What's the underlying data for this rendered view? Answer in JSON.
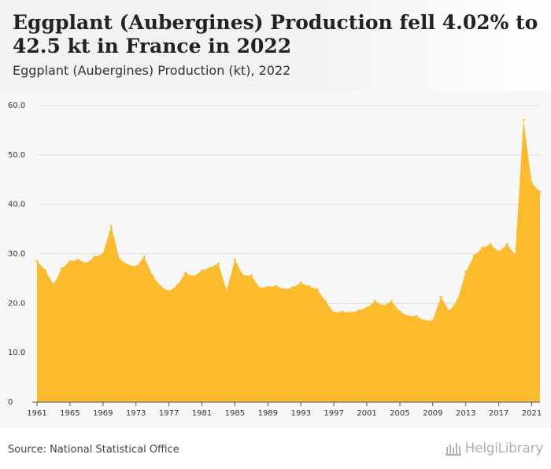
{
  "header": {
    "title": "Eggplant (Aubergines) Production fell 4.02% to 42.5 kt in France in 2022",
    "subtitle": "Eggplant (Aubergines) Production (kt), 2022"
  },
  "footer": {
    "source": "Source: National Statistical Office",
    "brand": "HelgiLibrary"
  },
  "colors": {
    "area": "#fbbb2d",
    "grid": "#dddddd",
    "axis": "#555555"
  },
  "chart_data": {
    "type": "area",
    "title": "Eggplant (Aubergines) Production (kt), 2022",
    "xlabel": "",
    "ylabel": "",
    "x": [
      1961,
      1962,
      1963,
      1964,
      1965,
      1966,
      1967,
      1968,
      1969,
      1970,
      1971,
      1972,
      1973,
      1974,
      1975,
      1976,
      1977,
      1978,
      1979,
      1980,
      1981,
      1982,
      1983,
      1984,
      1985,
      1986,
      1987,
      1988,
      1989,
      1990,
      1991,
      1992,
      1993,
      1994,
      1995,
      1996,
      1997,
      1998,
      1999,
      2000,
      2001,
      2002,
      2003,
      2004,
      2005,
      2006,
      2007,
      2008,
      2009,
      2010,
      2011,
      2012,
      2013,
      2014,
      2015,
      2016,
      2017,
      2018,
      2019,
      2020,
      2021,
      2022
    ],
    "values": [
      28.5,
      26.7,
      23.8,
      27.0,
      28.5,
      28.8,
      28.1,
      29.4,
      30.0,
      35.6,
      28.9,
      27.8,
      27.4,
      29.4,
      25.6,
      23.4,
      22.4,
      23.6,
      26.1,
      25.4,
      26.6,
      27.2,
      28.0,
      22.6,
      28.8,
      25.6,
      25.6,
      23.1,
      23.3,
      23.5,
      22.8,
      23.2,
      24.1,
      23.4,
      22.8,
      20.4,
      18.1,
      18.3,
      18.1,
      18.5,
      19.1,
      20.4,
      19.5,
      20.4,
      18.3,
      17.4,
      17.4,
      16.5,
      16.5,
      21.3,
      18.4,
      20.7,
      26.3,
      29.6,
      31.2,
      31.9,
      30.4,
      31.9,
      29.8,
      57.1,
      44.3,
      42.5
    ],
    "ylim": [
      0,
      60
    ],
    "yticks": [
      "0",
      "10.0",
      "20.0",
      "30.0",
      "40.0",
      "50.0",
      "60.0"
    ],
    "xticks": [
      "1961",
      "1965",
      "1969",
      "1973",
      "1977",
      "1981",
      "1985",
      "1989",
      "1993",
      "1997",
      "2001",
      "2005",
      "2009",
      "2013",
      "2017",
      "2021"
    ],
    "grid": true,
    "legend": "none"
  }
}
